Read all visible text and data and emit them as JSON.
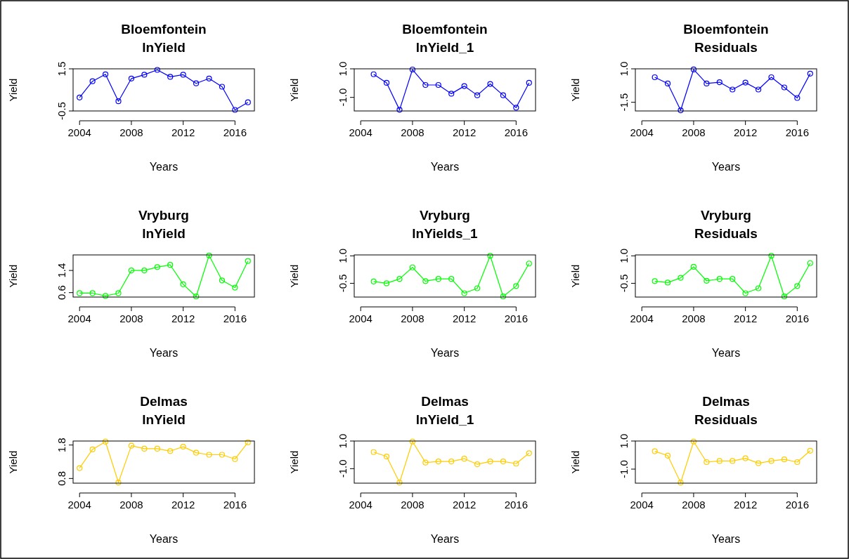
{
  "chart_data": [
    {
      "type": "line",
      "title": "Bloemfontein\nlnYield",
      "xlabel": "Years",
      "ylabel": "Yield",
      "marker": "circle",
      "xlim": [
        2003.5,
        2017.5
      ],
      "ylim": [
        -0.5,
        1.5
      ],
      "xticks": [
        2004,
        2008,
        2012,
        2016
      ],
      "yticks": [
        {
          "value": -0.5,
          "label": "-0.5"
        },
        {
          "value": 1.5,
          "label": "1.5"
        }
      ],
      "x": [
        2004,
        2005,
        2006,
        2007,
        2008,
        2009,
        2010,
        2011,
        2012,
        2013,
        2014,
        2015,
        2016,
        2017
      ],
      "series": [
        {
          "color": "#0000ff",
          "values": [
            0.14,
            0.91,
            1.24,
            -0.04,
            1.04,
            1.22,
            1.45,
            1.12,
            1.22,
            0.81,
            1.04,
            0.65,
            -0.45,
            -0.09
          ]
        }
      ]
    },
    {
      "type": "line",
      "title": "Bloemfontein\nlnYield_1",
      "xlabel": "Years",
      "ylabel": "Yield",
      "marker": "circle",
      "xlim": [
        2003.5,
        2017.5
      ],
      "ylim": [
        -1.95,
        1.0
      ],
      "xticks": [
        2004,
        2008,
        2012,
        2016
      ],
      "yticks": [
        {
          "value": -1,
          "label": "-1.0"
        },
        {
          "value": 1,
          "label": "1.0"
        }
      ],
      "x": [
        2005,
        2006,
        2007,
        2008,
        2009,
        2010,
        2011,
        2012,
        2013,
        2014,
        2015,
        2016,
        2017
      ],
      "series": [
        {
          "color": "#0000ff",
          "values": [
            0.62,
            0.02,
            -1.87,
            0.95,
            -0.13,
            -0.13,
            -0.74,
            -0.21,
            -0.85,
            -0.06,
            -0.85,
            -1.72,
            0.02
          ]
        }
      ]
    },
    {
      "type": "line",
      "title": "Bloemfontein\nResiduals",
      "xlabel": "Years",
      "ylabel": "Yield",
      "marker": "circle",
      "xlim": [
        2003.5,
        2017.5
      ],
      "ylim": [
        -2.15,
        1.0
      ],
      "xticks": [
        2004,
        2008,
        2012,
        2016
      ],
      "yticks": [
        {
          "value": -1.5,
          "label": "-1.5"
        },
        {
          "value": 1,
          "label": "1.0"
        }
      ],
      "x": [
        2005,
        2006,
        2007,
        2008,
        2009,
        2010,
        2011,
        2012,
        2013,
        2014,
        2015,
        2016,
        2017
      ],
      "series": [
        {
          "color": "#0000ff",
          "values": [
            0.37,
            -0.1,
            -2.1,
            0.95,
            -0.1,
            0.0,
            -0.55,
            -0.03,
            -0.55,
            0.37,
            -0.39,
            -1.18,
            0.64
          ]
        }
      ]
    },
    {
      "type": "line",
      "title": "Vryburg\nlnYield",
      "xlabel": "Years",
      "ylabel": "Yield",
      "marker": "circle",
      "xlim": [
        2003.5,
        2017.5
      ],
      "ylim": [
        0.44,
        1.96
      ],
      "xticks": [
        2004,
        2008,
        2012,
        2016
      ],
      "yticks": [
        {
          "value": 0.6,
          "label": "0.6"
        },
        {
          "value": 1.4,
          "label": "1.4"
        }
      ],
      "x": [
        2004,
        2005,
        2006,
        2007,
        2008,
        2009,
        2010,
        2011,
        2012,
        2013,
        2014,
        2015,
        2016,
        2017
      ],
      "series": [
        {
          "color": "#00ff00",
          "values": [
            0.58,
            0.58,
            0.48,
            0.58,
            1.4,
            1.4,
            1.52,
            1.6,
            0.9,
            0.46,
            1.94,
            1.04,
            0.78,
            1.74
          ]
        }
      ]
    },
    {
      "type": "line",
      "title": "Vryburg\nlnYields_1",
      "xlabel": "Years",
      "ylabel": "Yield",
      "marker": "circle",
      "xlim": [
        2003.5,
        2017.5
      ],
      "ylim": [
        -1.25,
        1.05
      ],
      "xticks": [
        2004,
        2008,
        2012,
        2016
      ],
      "yticks": [
        {
          "value": -0.5,
          "label": "-0.5"
        },
        {
          "value": 1,
          "label": "1.0"
        }
      ],
      "x": [
        2005,
        2006,
        2007,
        2008,
        2009,
        2010,
        2011,
        2012,
        2013,
        2014,
        2015,
        2016,
        2017
      ],
      "series": [
        {
          "color": "#00ff00",
          "values": [
            -0.4,
            -0.5,
            -0.26,
            0.37,
            -0.38,
            -0.26,
            -0.26,
            -1.04,
            -0.77,
            1.0,
            -1.22,
            -0.65,
            0.58
          ]
        }
      ]
    },
    {
      "type": "line",
      "title": "Vryburg\nResiduals",
      "xlabel": "Years",
      "ylabel": "Yield",
      "marker": "circle",
      "xlim": [
        2003.5,
        2017.5
      ],
      "ylim": [
        -1.25,
        1.05
      ],
      "xticks": [
        2004,
        2008,
        2012,
        2016
      ],
      "yticks": [
        {
          "value": -0.5,
          "label": "-0.5"
        },
        {
          "value": 1,
          "label": "1.0"
        }
      ],
      "x": [
        2005,
        2006,
        2007,
        2008,
        2009,
        2010,
        2011,
        2012,
        2013,
        2014,
        2015,
        2016,
        2017
      ],
      "series": [
        {
          "color": "#00ff00",
          "values": [
            -0.38,
            -0.46,
            -0.2,
            0.4,
            -0.36,
            -0.26,
            -0.26,
            -1.04,
            -0.77,
            1.0,
            -1.22,
            -0.65,
            0.6
          ]
        }
      ]
    },
    {
      "type": "line",
      "title": "Delmas\nlnYield",
      "xlabel": "Years",
      "ylabel": "Yield",
      "marker": "circle",
      "xlim": [
        2003.5,
        2017.5
      ],
      "ylim": [
        0.66,
        1.92
      ],
      "xticks": [
        2004,
        2008,
        2012,
        2016
      ],
      "yticks": [
        {
          "value": 0.8,
          "label": "0.8"
        },
        {
          "value": 1.8,
          "label": "1.8"
        }
      ],
      "x": [
        2004,
        2005,
        2006,
        2007,
        2008,
        2009,
        2010,
        2011,
        2012,
        2013,
        2014,
        2015,
        2016,
        2017
      ],
      "series": [
        {
          "color": "#ffcc00",
          "values": [
            1.11,
            1.67,
            1.9,
            0.68,
            1.78,
            1.69,
            1.69,
            1.62,
            1.75,
            1.57,
            1.51,
            1.51,
            1.38,
            1.88
          ]
        }
      ]
    },
    {
      "type": "line",
      "title": "Delmas\nlnYield_1",
      "xlabel": "Years",
      "ylabel": "Yield",
      "marker": "circle",
      "xlim": [
        2003.5,
        2017.5
      ],
      "ylim": [
        -2.05,
        1.0
      ],
      "xticks": [
        2004,
        2008,
        2012,
        2016
      ],
      "yticks": [
        {
          "value": -1,
          "label": "-1.0"
        },
        {
          "value": 1,
          "label": "1.0"
        }
      ],
      "x": [
        2005,
        2006,
        2007,
        2008,
        2009,
        2010,
        2011,
        2012,
        2013,
        2014,
        2015,
        2016,
        2017
      ],
      "series": [
        {
          "color": "#ffcc00",
          "values": [
            0.2,
            -0.12,
            -2.0,
            0.96,
            -0.56,
            -0.48,
            -0.48,
            -0.28,
            -0.68,
            -0.48,
            -0.48,
            -0.64,
            0.12
          ]
        }
      ]
    },
    {
      "type": "line",
      "title": "Delmas\nResiduals",
      "xlabel": "Years",
      "ylabel": "Yield",
      "marker": "circle",
      "xlim": [
        2003.5,
        2017.5
      ],
      "ylim": [
        -2.0,
        1.0
      ],
      "xticks": [
        2004,
        2008,
        2012,
        2016
      ],
      "yticks": [
        {
          "value": -1,
          "label": "-1.0"
        },
        {
          "value": 1,
          "label": "1.0"
        }
      ],
      "x": [
        2005,
        2006,
        2007,
        2008,
        2009,
        2010,
        2011,
        2012,
        2013,
        2014,
        2015,
        2016,
        2017
      ],
      "series": [
        {
          "color": "#ffcc00",
          "values": [
            0.27,
            -0.04,
            -1.96,
            0.96,
            -0.5,
            -0.42,
            -0.42,
            -0.23,
            -0.58,
            -0.42,
            -0.31,
            -0.5,
            0.31
          ]
        }
      ]
    }
  ]
}
